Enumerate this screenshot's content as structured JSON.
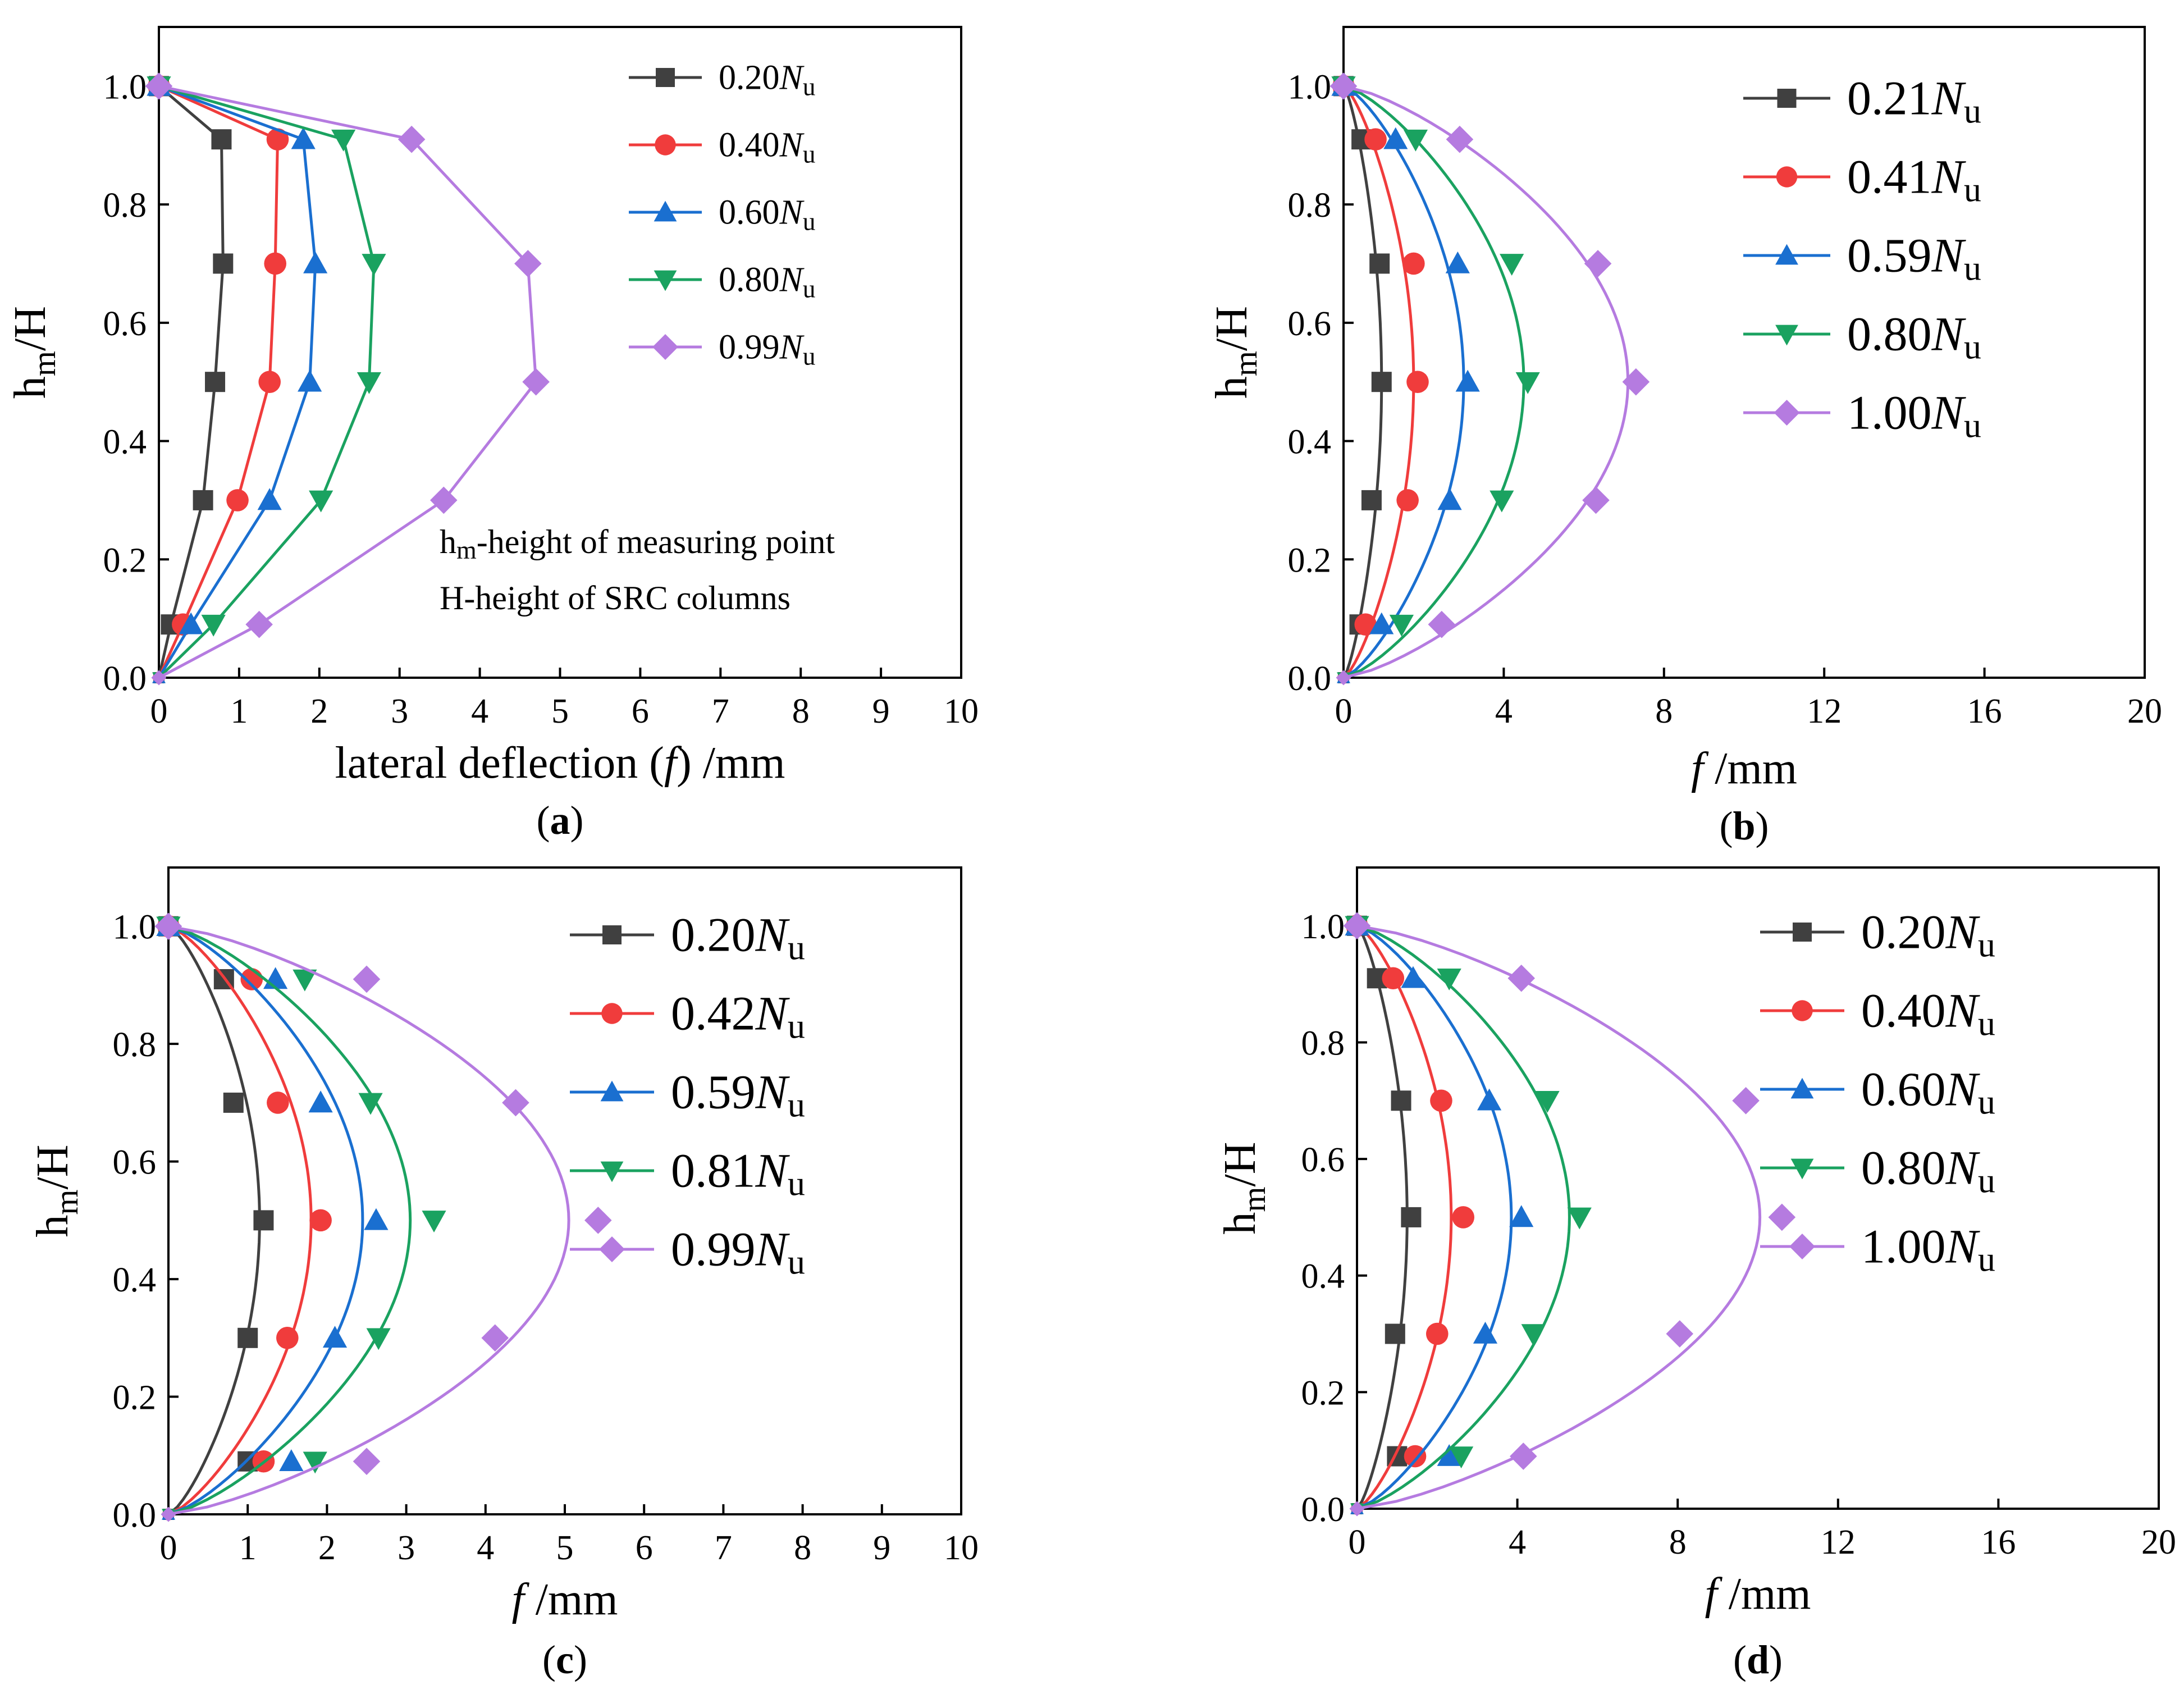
{
  "colors": {
    "series": [
      "#404040",
      "#f03c3c",
      "#1a6fd0",
      "#1aa260",
      "#b57be0"
    ],
    "frame": "#000000",
    "background": "#ffffff"
  },
  "markers": [
    "square",
    "circle",
    "triangle-up",
    "triangle-down",
    "diamond"
  ],
  "chart_data": [
    {
      "panel": "a",
      "type": "line",
      "caption_prefix": "(",
      "caption_letter": "a",
      "caption_suffix": ")",
      "xlabel_parts": [
        "lateral deflection (",
        "f",
        ") /mm"
      ],
      "ylabel_main": "h",
      "ylabel_sub": "m",
      "ylabel_rest": "/H",
      "xlim": [
        0,
        10
      ],
      "ylim": [
        0,
        1.1
      ],
      "xticks": [
        "0",
        "1",
        "2",
        "3",
        "4",
        "5",
        "6",
        "7",
        "8",
        "9",
        "10"
      ],
      "yticks": [
        "0.0",
        "0.2",
        "0.4",
        "0.6",
        "0.8",
        "1.0"
      ],
      "smooth": false,
      "legend_placement": "top-right",
      "annotations": [
        {
          "main": "h",
          "sub": "m",
          "rest": "-height of measuring point"
        },
        {
          "main": "H-height of SRC columns",
          "sub": "",
          "rest": ""
        }
      ],
      "series": [
        {
          "name_num": "0.20",
          "name_var": "N",
          "name_sub": "u",
          "points": [
            [
              0,
              0
            ],
            [
              0.15,
              0.09
            ],
            [
              0.55,
              0.3
            ],
            [
              0.7,
              0.5
            ],
            [
              0.8,
              0.7
            ],
            [
              0.78,
              0.91
            ],
            [
              0,
              1.0
            ]
          ]
        },
        {
          "name_num": "0.40",
          "name_var": "N",
          "name_sub": "u",
          "points": [
            [
              0,
              0
            ],
            [
              0.3,
              0.09
            ],
            [
              0.98,
              0.3
            ],
            [
              1.38,
              0.5
            ],
            [
              1.45,
              0.7
            ],
            [
              1.48,
              0.91
            ],
            [
              0,
              1.0
            ]
          ]
        },
        {
          "name_num": "0.60",
          "name_var": "N",
          "name_sub": "u",
          "points": [
            [
              0,
              0
            ],
            [
              0.4,
              0.09
            ],
            [
              1.38,
              0.3
            ],
            [
              1.88,
              0.5
            ],
            [
              1.95,
              0.7
            ],
            [
              1.8,
              0.91
            ],
            [
              0,
              1.0
            ]
          ]
        },
        {
          "name_num": "0.80",
          "name_var": "N",
          "name_sub": "u",
          "points": [
            [
              0,
              0
            ],
            [
              0.68,
              0.09
            ],
            [
              2.02,
              0.3
            ],
            [
              2.62,
              0.5
            ],
            [
              2.68,
              0.7
            ],
            [
              2.3,
              0.91
            ],
            [
              0,
              1.0
            ]
          ]
        },
        {
          "name_num": "0.99",
          "name_var": "N",
          "name_sub": "u",
          "points": [
            [
              0,
              0
            ],
            [
              1.25,
              0.09
            ],
            [
              3.55,
              0.3
            ],
            [
              4.7,
              0.5
            ],
            [
              4.6,
              0.7
            ],
            [
              3.15,
              0.91
            ],
            [
              0,
              1.0
            ]
          ]
        }
      ]
    },
    {
      "panel": "b",
      "type": "line",
      "caption_prefix": "(",
      "caption_letter": "b",
      "caption_suffix": ")",
      "xlabel_parts": [
        "",
        "f",
        " /mm"
      ],
      "ylabel_main": "h",
      "ylabel_sub": "m",
      "ylabel_rest": "/H",
      "xlim": [
        0,
        20
      ],
      "ylim": [
        0,
        1.1
      ],
      "xticks": [
        "0",
        "4",
        "8",
        "12",
        "16",
        "20"
      ],
      "yticks": [
        "0.0",
        "0.2",
        "0.4",
        "0.6",
        "0.8",
        "1.0"
      ],
      "smooth": true,
      "legend_placement": "top-right",
      "annotations": [],
      "series": [
        {
          "name_num": "0.21",
          "name_var": "N",
          "name_sub": "u",
          "peak": 0.95,
          "points": [
            [
              0.4,
              0.09
            ],
            [
              0.7,
              0.3
            ],
            [
              0.95,
              0.5
            ],
            [
              0.9,
              0.7
            ],
            [
              0.45,
              0.91
            ],
            [
              0,
              1.0
            ]
          ]
        },
        {
          "name_num": "0.41",
          "name_var": "N",
          "name_sub": "u",
          "peak": 1.75,
          "points": [
            [
              0.55,
              0.09
            ],
            [
              1.6,
              0.3
            ],
            [
              1.85,
              0.5
            ],
            [
              1.75,
              0.7
            ],
            [
              0.8,
              0.91
            ],
            [
              0,
              1.0
            ]
          ]
        },
        {
          "name_num": "0.59",
          "name_var": "N",
          "name_sub": "u",
          "peak": 3.0,
          "points": [
            [
              0.95,
              0.09
            ],
            [
              2.65,
              0.3
            ],
            [
              3.1,
              0.5
            ],
            [
              2.85,
              0.7
            ],
            [
              1.3,
              0.91
            ],
            [
              0,
              1.0
            ]
          ]
        },
        {
          "name_num": "0.80",
          "name_var": "N",
          "name_sub": "u",
          "peak": 4.5,
          "points": [
            [
              1.45,
              0.09
            ],
            [
              3.95,
              0.3
            ],
            [
              4.6,
              0.5
            ],
            [
              4.2,
              0.7
            ],
            [
              1.8,
              0.91
            ],
            [
              0,
              1.0
            ]
          ]
        },
        {
          "name_num": "1.00",
          "name_var": "N",
          "name_sub": "u",
          "peak": 7.1,
          "points": [
            [
              2.45,
              0.09
            ],
            [
              6.3,
              0.3
            ],
            [
              7.3,
              0.5
            ],
            [
              6.35,
              0.7
            ],
            [
              2.9,
              0.91
            ],
            [
              0,
              1.0
            ]
          ]
        }
      ]
    },
    {
      "panel": "c",
      "type": "line",
      "caption_prefix": "(",
      "caption_letter": "c",
      "caption_suffix": ")",
      "xlabel_parts": [
        "",
        "f",
        " /mm"
      ],
      "ylabel_main": "h",
      "ylabel_sub": "m",
      "ylabel_rest": "/H",
      "xlim": [
        0,
        10
      ],
      "ylim": [
        0,
        1.1
      ],
      "xticks": [
        "0",
        "1",
        "2",
        "3",
        "4",
        "5",
        "6",
        "7",
        "8",
        "9",
        "10"
      ],
      "yticks": [
        "0.0",
        "0.2",
        "0.4",
        "0.6",
        "0.8",
        "1.0"
      ],
      "smooth": true,
      "legend_placement": "top-right",
      "annotations": [],
      "series": [
        {
          "name_num": "0.20",
          "name_var": "N",
          "name_sub": "u",
          "peak": 1.15,
          "points": [
            [
              1.0,
              0.09
            ],
            [
              1.0,
              0.3
            ],
            [
              1.2,
              0.5
            ],
            [
              0.82,
              0.7
            ],
            [
              0.7,
              0.91
            ],
            [
              0,
              1.0
            ]
          ]
        },
        {
          "name_num": "0.42",
          "name_var": "N",
          "name_sub": "u",
          "peak": 1.8,
          "points": [
            [
              1.2,
              0.09
            ],
            [
              1.5,
              0.3
            ],
            [
              1.92,
              0.5
            ],
            [
              1.38,
              0.7
            ],
            [
              1.05,
              0.91
            ],
            [
              0,
              1.0
            ]
          ]
        },
        {
          "name_num": "0.59",
          "name_var": "N",
          "name_sub": "u",
          "peak": 2.45,
          "points": [
            [
              1.55,
              0.09
            ],
            [
              2.1,
              0.3
            ],
            [
              2.62,
              0.5
            ],
            [
              1.92,
              0.7
            ],
            [
              1.35,
              0.91
            ],
            [
              0,
              1.0
            ]
          ]
        },
        {
          "name_num": "0.81",
          "name_var": "N",
          "name_sub": "u",
          "peak": 3.05,
          "points": [
            [
              1.85,
              0.09
            ],
            [
              2.65,
              0.3
            ],
            [
              3.35,
              0.5
            ],
            [
              2.55,
              0.7
            ],
            [
              1.72,
              0.91
            ],
            [
              0,
              1.0
            ]
          ]
        },
        {
          "name_num": "0.99",
          "name_var": "N",
          "name_sub": "u",
          "peak": 5.05,
          "points": [
            [
              2.5,
              0.09
            ],
            [
              4.12,
              0.3
            ],
            [
              5.42,
              0.5
            ],
            [
              4.38,
              0.7
            ],
            [
              2.5,
              0.91
            ],
            [
              0,
              1.0
            ]
          ]
        }
      ]
    },
    {
      "panel": "d",
      "type": "line",
      "caption_prefix": "(",
      "caption_letter": "d",
      "caption_suffix": ")",
      "xlabel_parts": [
        "",
        "f",
        " /mm"
      ],
      "ylabel_main": "h",
      "ylabel_sub": "m",
      "ylabel_rest": "/H",
      "xlim": [
        0,
        20
      ],
      "ylim": [
        0,
        1.1
      ],
      "xticks": [
        "0",
        "4",
        "8",
        "12",
        "16",
        "20"
      ],
      "yticks": [
        "0.0",
        "0.2",
        "0.4",
        "0.6",
        "0.8",
        "1.0"
      ],
      "smooth": true,
      "legend_placement": "top-right",
      "annotations": [],
      "series": [
        {
          "name_num": "0.20",
          "name_var": "N",
          "name_sub": "u",
          "peak": 1.25,
          "points": [
            [
              1.0,
              0.09
            ],
            [
              0.95,
              0.3
            ],
            [
              1.35,
              0.5
            ],
            [
              1.1,
              0.7
            ],
            [
              0.5,
              0.91
            ],
            [
              0,
              1.0
            ]
          ]
        },
        {
          "name_num": "0.40",
          "name_var": "N",
          "name_sub": "u",
          "peak": 2.35,
          "points": [
            [
              1.45,
              0.09
            ],
            [
              2.0,
              0.3
            ],
            [
              2.65,
              0.5
            ],
            [
              2.1,
              0.7
            ],
            [
              0.9,
              0.91
            ],
            [
              0,
              1.0
            ]
          ]
        },
        {
          "name_num": "0.60",
          "name_var": "N",
          "name_sub": "u",
          "peak": 3.85,
          "points": [
            [
              2.3,
              0.09
            ],
            [
              3.2,
              0.3
            ],
            [
              4.1,
              0.5
            ],
            [
              3.3,
              0.7
            ],
            [
              1.4,
              0.91
            ],
            [
              0,
              1.0
            ]
          ]
        },
        {
          "name_num": "0.80",
          "name_var": "N",
          "name_sub": "u",
          "peak": 5.3,
          "points": [
            [
              2.6,
              0.09
            ],
            [
              4.4,
              0.3
            ],
            [
              5.55,
              0.5
            ],
            [
              4.75,
              0.7
            ],
            [
              2.3,
              0.91
            ],
            [
              0,
              1.0
            ]
          ]
        },
        {
          "name_num": "1.00",
          "name_var": "N",
          "name_sub": "u",
          "peak": 10.05,
          "points": [
            [
              4.15,
              0.09
            ],
            [
              8.05,
              0.3
            ],
            [
              10.6,
              0.5
            ],
            [
              9.7,
              0.7
            ],
            [
              4.1,
              0.91
            ],
            [
              0,
              1.0
            ]
          ]
        }
      ]
    }
  ]
}
